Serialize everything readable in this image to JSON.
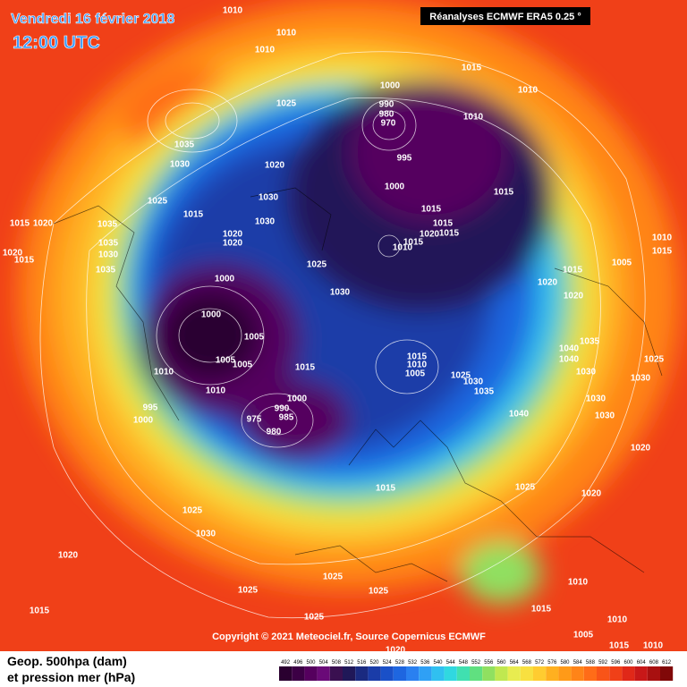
{
  "header": {
    "date": "Vendredi 16 février 2018",
    "time": "12:00 UTC",
    "source": "Réanalyses ECMWF ERA5 0.25 °"
  },
  "copyright": "Copyright © 2021 Meteociel.fr, Source Copernicus ECMWF",
  "legend": {
    "line1": "Geop. 500hpa (dam)",
    "line2": "et pression mer (hPa)",
    "scale": [
      492,
      496,
      500,
      504,
      508,
      512,
      516,
      520,
      524,
      528,
      532,
      536,
      540,
      544,
      548,
      552,
      556,
      560,
      564,
      568,
      572,
      576,
      580,
      584,
      588,
      592,
      596,
      600,
      604,
      608,
      612
    ],
    "colors": [
      "#2a0030",
      "#3c0045",
      "#55005e",
      "#6a0a78",
      "#3a1050",
      "#201858",
      "#1a2a80",
      "#1a3ca8",
      "#1a50c8",
      "#1e66e0",
      "#2a80f0",
      "#2fa0f5",
      "#30c0f0",
      "#30d8e0",
      "#40e0b0",
      "#60e080",
      "#90e060",
      "#c0e850",
      "#e8ec50",
      "#f8e040",
      "#ffcc30",
      "#ffb020",
      "#ff9a18",
      "#ff8418",
      "#ff6c18",
      "#f85418",
      "#f04018",
      "#e02818",
      "#c81818",
      "#a81010",
      "#800808"
    ]
  },
  "isobar_labels": [
    1010,
    1010,
    1010,
    1025,
    1035,
    1030,
    1020,
    1030,
    1030,
    1025,
    1015,
    1035,
    1015,
    1020,
    1020,
    1015,
    1035,
    1030,
    1035,
    1020,
    1020,
    1025,
    1030,
    1000,
    990,
    980,
    970,
    995,
    1000,
    1010,
    1015,
    1010,
    1015,
    1015,
    1015,
    1020,
    1015,
    1015,
    1010,
    1000,
    1000,
    1005,
    1005,
    1005,
    1010,
    1010,
    1015,
    995,
    1000,
    990,
    1000,
    985,
    975,
    980,
    1015,
    1010,
    1005,
    1025,
    1030,
    1035,
    1040,
    1015,
    1020,
    1020,
    1035,
    1040,
    1040,
    1030,
    1025,
    1030,
    1030,
    1030,
    1020,
    1025,
    1020,
    1015,
    1025,
    1030,
    1020,
    1025,
    1025,
    1025,
    1025,
    1015,
    1015,
    1010,
    1005,
    1010,
    1015,
    1010,
    1020,
    1010,
    1015,
    1005
  ]
}
